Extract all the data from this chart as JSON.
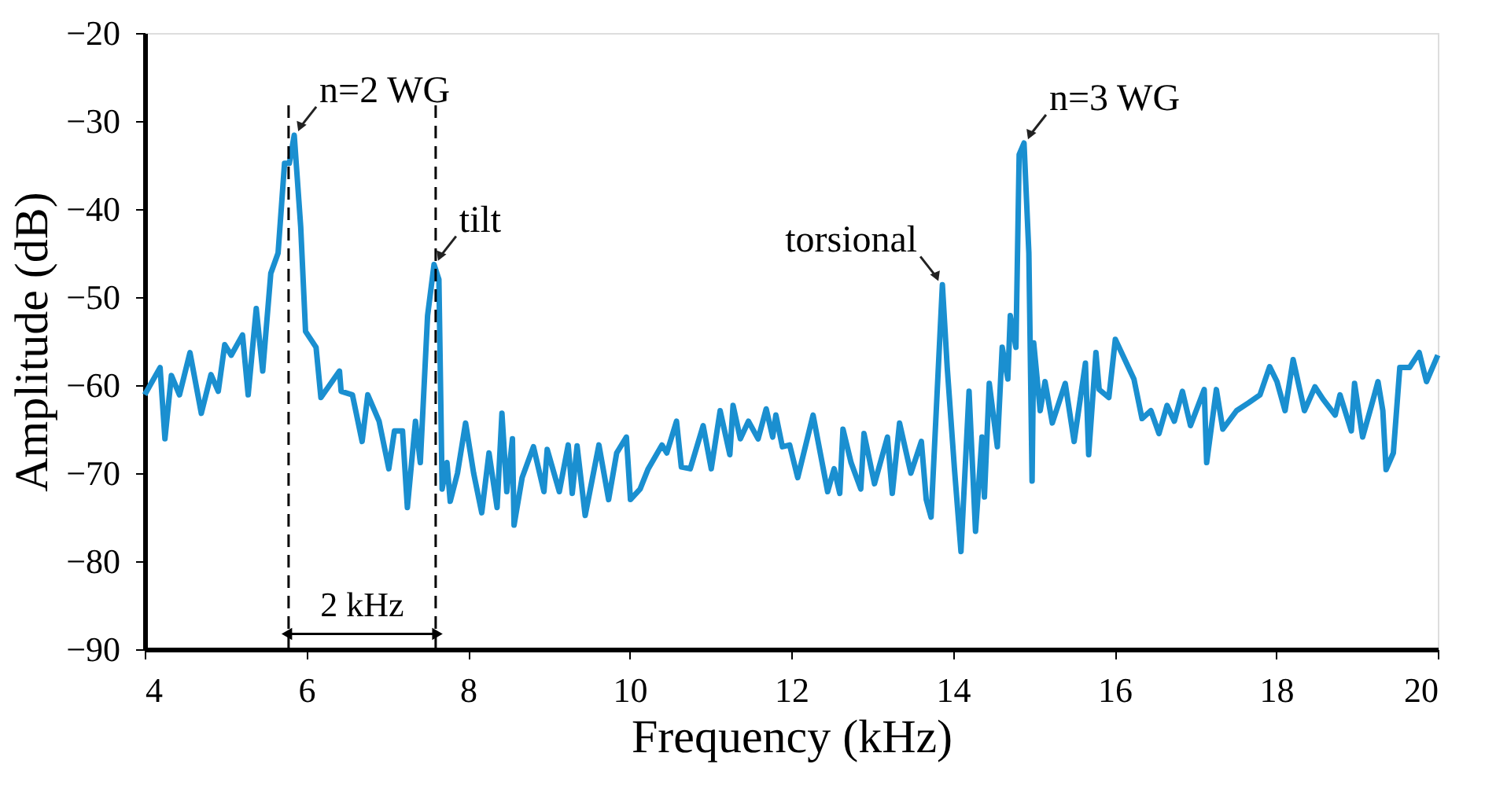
{
  "chart_data": {
    "type": "line",
    "xlabel": "Frequency (kHz)",
    "ylabel": "Amplitude (dB)",
    "xlim": [
      4,
      20
    ],
    "ylim": [
      -90,
      -20
    ],
    "xticks": [
      4,
      6,
      8,
      10,
      12,
      14,
      16,
      18,
      20
    ],
    "yticks": [
      -90,
      -80,
      -70,
      -60,
      -50,
      -40,
      -30,
      -20
    ],
    "grid": false,
    "legend": false,
    "line_style": "solid",
    "series": [
      {
        "color": "#1a8fd0",
        "x": [
          4.0,
          4.19,
          4.25,
          4.33,
          4.43,
          4.56,
          4.7,
          4.82,
          4.91,
          4.99,
          5.07,
          5.21,
          5.28,
          5.38,
          5.46,
          5.56,
          5.65,
          5.73,
          5.79,
          5.85,
          5.93,
          5.99,
          6.12,
          6.18,
          6.41,
          6.43,
          6.57,
          6.69,
          6.76,
          6.9,
          7.02,
          7.09,
          7.19,
          7.25,
          7.35,
          7.41,
          7.5,
          7.58,
          7.64,
          7.68,
          7.74,
          7.78,
          7.87,
          7.97,
          8.07,
          8.17,
          8.26,
          8.36,
          8.42,
          8.48,
          8.55,
          8.57,
          8.67,
          8.81,
          8.94,
          8.98,
          9.13,
          9.24,
          9.29,
          9.35,
          9.45,
          9.62,
          9.74,
          9.84,
          9.96,
          10.01,
          10.13,
          10.23,
          10.4,
          10.46,
          10.58,
          10.64,
          10.75,
          10.91,
          11.01,
          11.12,
          11.24,
          11.28,
          11.37,
          11.47,
          11.59,
          11.69,
          11.77,
          11.81,
          11.89,
          11.98,
          12.08,
          12.27,
          12.45,
          12.53,
          12.6,
          12.64,
          12.74,
          12.86,
          12.9,
          13.03,
          13.19,
          13.25,
          13.34,
          13.48,
          13.61,
          13.67,
          13.73,
          13.87,
          13.93,
          14.02,
          14.1,
          14.2,
          14.28,
          14.36,
          14.39,
          14.45,
          14.55,
          14.61,
          14.68,
          14.71,
          14.78,
          14.82,
          14.88,
          14.94,
          14.98,
          15.0,
          15.08,
          15.14,
          15.23,
          15.39,
          15.5,
          15.64,
          15.68,
          15.77,
          15.81,
          15.93,
          16.01,
          16.24,
          16.34,
          16.45,
          16.55,
          16.65,
          16.74,
          16.84,
          16.94,
          17.11,
          17.14,
          17.26,
          17.34,
          17.51,
          17.66,
          17.8,
          17.92,
          18.01,
          18.11,
          18.21,
          18.35,
          18.48,
          18.58,
          18.73,
          18.79,
          18.93,
          18.97,
          19.07,
          19.18,
          19.26,
          19.32,
          19.36,
          19.45,
          19.53,
          19.65,
          19.77,
          19.86,
          20.0
        ],
        "values": [
          -61.1,
          -58.0,
          -66.1,
          -58.9,
          -61.1,
          -56.3,
          -63.2,
          -58.8,
          -60.7,
          -55.4,
          -56.6,
          -54.3,
          -61.1,
          -51.3,
          -58.4,
          -47.3,
          -45.0,
          -34.8,
          -34.8,
          -31.6,
          -42.0,
          -53.9,
          -55.7,
          -61.4,
          -58.4,
          -60.7,
          -61.1,
          -66.4,
          -61.1,
          -64.1,
          -69.5,
          -65.2,
          -65.2,
          -73.9,
          -64.1,
          -68.8,
          -52.1,
          -46.3,
          -48.0,
          -71.8,
          -68.8,
          -73.2,
          -70.0,
          -64.3,
          -70.0,
          -74.5,
          -67.7,
          -73.9,
          -63.2,
          -72.1,
          -66.1,
          -75.9,
          -70.5,
          -67.0,
          -72.1,
          -67.3,
          -72.1,
          -66.8,
          -72.3,
          -66.9,
          -74.8,
          -66.8,
          -73.0,
          -67.7,
          -65.9,
          -73.0,
          -71.8,
          -69.5,
          -66.8,
          -67.7,
          -64.1,
          -69.3,
          -69.5,
          -64.6,
          -69.5,
          -62.9,
          -67.9,
          -62.3,
          -66.1,
          -64.1,
          -66.1,
          -62.7,
          -65.9,
          -63.4,
          -67.0,
          -66.8,
          -70.5,
          -63.4,
          -72.1,
          -69.5,
          -72.3,
          -65.0,
          -68.8,
          -71.8,
          -65.5,
          -71.2,
          -65.9,
          -72.3,
          -64.3,
          -70.0,
          -66.4,
          -73.0,
          -75.0,
          -48.6,
          -58.0,
          -69.6,
          -78.9,
          -60.7,
          -76.6,
          -65.9,
          -72.7,
          -59.8,
          -67.0,
          -55.7,
          -59.3,
          -52.1,
          -55.7,
          -33.8,
          -32.5,
          -45.0,
          -70.9,
          -55.2,
          -62.9,
          -59.6,
          -64.3,
          -59.8,
          -66.4,
          -57.5,
          -67.9,
          -56.3,
          -60.5,
          -61.4,
          -54.8,
          -59.3,
          -63.8,
          -62.9,
          -65.5,
          -62.3,
          -64.1,
          -60.7,
          -64.6,
          -60.5,
          -68.8,
          -60.5,
          -65.0,
          -62.9,
          -62.0,
          -61.1,
          -57.9,
          -59.6,
          -62.9,
          -57.1,
          -62.9,
          -60.2,
          -61.6,
          -63.4,
          -61.1,
          -65.2,
          -59.8,
          -65.9,
          -62.3,
          -59.6,
          -62.9,
          -69.6,
          -67.7,
          -58.0,
          -58.0,
          -56.3,
          -59.6,
          -56.6
        ]
      }
    ],
    "ref_lines": [
      {
        "axis": "x",
        "value": 5.78,
        "color": "#000000",
        "line_style": "dashed"
      },
      {
        "axis": "x",
        "value": 7.6,
        "color": "#000000",
        "line_style": "dashed"
      }
    ],
    "annotations": [
      {
        "text": "n=2 WG",
        "x": 5.85,
        "y": -31.6
      },
      {
        "text": "tilt",
        "x": 7.58,
        "y": -46.3
      },
      {
        "text": "torsional",
        "x": 13.87,
        "y": -48.6
      },
      {
        "text": "n=3 WG",
        "x": 14.88,
        "y": -32.5
      },
      "2 kHz"
    ]
  }
}
